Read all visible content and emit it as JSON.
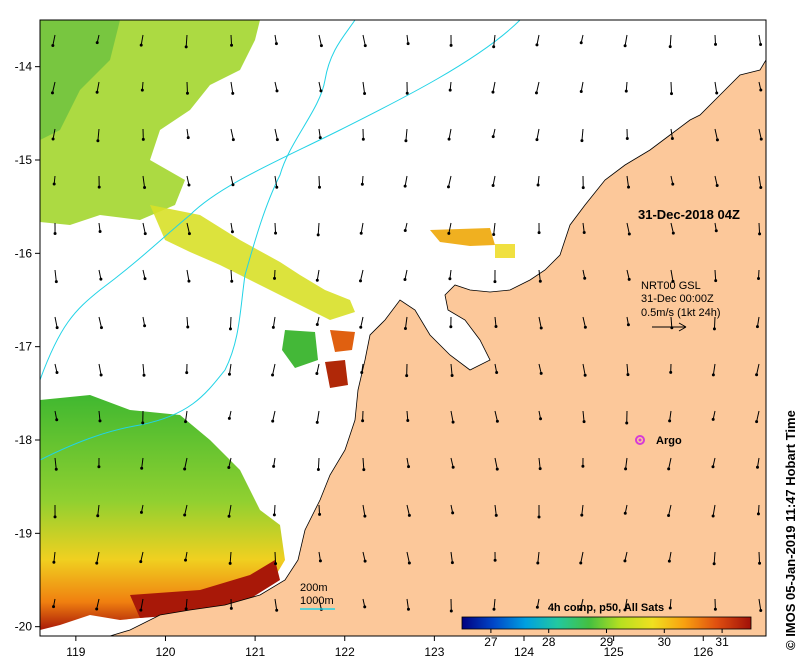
{
  "map": {
    "lon_range": [
      118.6,
      126.7
    ],
    "lat_range": [
      -20.1,
      -13.5
    ],
    "x_ticks": [
      {
        "value": 119,
        "label": "119"
      },
      {
        "value": 120,
        "label": "120"
      },
      {
        "value": 121,
        "label": "121"
      },
      {
        "value": 122,
        "label": "122"
      },
      {
        "value": 123,
        "label": "123"
      },
      {
        "value": 124,
        "label": "124"
      },
      {
        "value": 125,
        "label": "125"
      },
      {
        "value": 126,
        "label": "126"
      }
    ],
    "y_ticks": [
      {
        "value": -14,
        "label": "-14"
      },
      {
        "value": -15,
        "label": "-15"
      },
      {
        "value": -16,
        "label": "-16"
      },
      {
        "value": -17,
        "label": "-17"
      },
      {
        "value": -18,
        "label": "-18"
      },
      {
        "value": -19,
        "label": "-19"
      },
      {
        "value": -20,
        "label": "-20"
      }
    ],
    "land_color": "#fcc89a",
    "bathymetry_color": "#22d3e6",
    "current_arrows_color": "#000000"
  },
  "annotations": {
    "date_label": "31-Dec-2018 04Z",
    "current_product": "NRT00 GSL",
    "current_time": "31-Dec 00:00Z",
    "current_scale": "0.5m/s (1kt 24h)",
    "argo_label": "Argo",
    "argo_color": "#d63cd6",
    "isobath_200": "200m",
    "isobath_1000": "1000m",
    "credit": "© IMOS 05-Jan-2019 11:47 Hobart Time"
  },
  "colorbar": {
    "title": "4h comp, p50, All Sats",
    "range": [
      26.5,
      31.5
    ],
    "ticks": [
      {
        "value": 27,
        "label": "27"
      },
      {
        "value": 28,
        "label": "28"
      },
      {
        "value": 29,
        "label": "29"
      },
      {
        "value": 30,
        "label": "30"
      },
      {
        "value": 31,
        "label": "31"
      }
    ],
    "stops": [
      "#000080",
      "#0047c8",
      "#00a0e0",
      "#22c8a0",
      "#44c040",
      "#b8e020",
      "#f0e020",
      "#f8a010",
      "#e05010",
      "#a01008"
    ]
  }
}
